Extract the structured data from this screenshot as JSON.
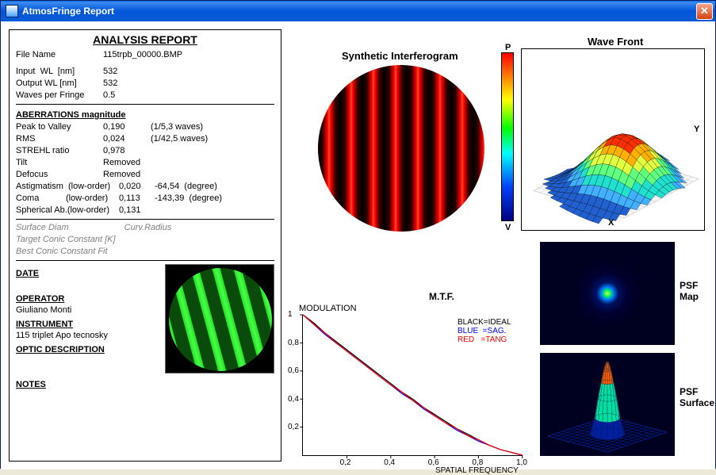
{
  "window": {
    "title": "AtmosFringe  Report"
  },
  "report": {
    "heading": "ANALYSIS  REPORT",
    "file_label": "File Name",
    "file_value": "115trpb_00000.BMP",
    "input_wl_label": "Input  WL  [nm]",
    "input_wl": "532",
    "output_wl_label": "Output WL [nm]",
    "output_wl": "532",
    "wpf_label": "Waves per Fringe",
    "wpf": "0.5",
    "abmag_heading": "ABERRATIONS magnitude",
    "ptv_label": "Peak to Valley",
    "ptv_val": "0,190",
    "ptv_note": "(1/5,3 waves)",
    "rms_label": "RMS",
    "rms_val": "0,024",
    "rms_note": "(1/42,5 waves)",
    "strehl_label": "STREHL ratio",
    "strehl_val": "0,978",
    "tilt_label": "Tilt",
    "tilt_val": "Removed",
    "defocus_label": "Defocus",
    "defocus_val": "Removed",
    "astig_label": "Astigmatism  (low-order)",
    "astig_val": "0,020",
    "astig_deg": "-64,54  (degree)",
    "coma_label": "Coma           (low-order)",
    "coma_val": "0,113",
    "coma_deg": "-143,39  (degree)",
    "sph_label": "Spherical Ab.(low-order)",
    "sph_val": "0,131",
    "surf_diam": "Surface Diam",
    "curv_radius": "Curv.Radius",
    "target_conic": "Target Conic Constant [K]",
    "best_conic": "Best Conic Constant Fit",
    "date_heading": "DATE",
    "operator_heading": "OPERATOR",
    "operator": "Giuliano Monti",
    "instrument_heading": "INSTRUMENT",
    "instrument": "115 triplet Apo tecnosky",
    "optic_heading": "OPTIC DESCRIPTION",
    "notes_heading": "NOTES"
  },
  "interferogram": {
    "title": "Synthetic Interferogram",
    "stripe_dark": "#000000",
    "stripe_mid": "#aa0000",
    "stripe_bright": "#ff3a1a"
  },
  "colorbar": {
    "top_label": "P",
    "bottom_label": "V",
    "stops": [
      "#ff0000",
      "#ff8000",
      "#ffff00",
      "#00ff00",
      "#00ffff",
      "#0040ff",
      "#000080"
    ]
  },
  "wavefront": {
    "title": "Wave Front",
    "x_label": "X",
    "y_label": "Y",
    "grid_color": "#c0c0c0",
    "mesh_color": "#000000",
    "surface_colors": [
      "#ff3000",
      "#ffb000",
      "#e0ff40",
      "#60ff80",
      "#20e0d0",
      "#40b0ff",
      "#2060d0"
    ]
  },
  "psfmap": {
    "label1": "PSF",
    "label2": "Map",
    "bg": "#000020",
    "core": "#ffff80",
    "ring1": "#00ff40",
    "ring2": "#0080ff"
  },
  "psfsurf": {
    "label1": "PSF",
    "label2": "Surface",
    "bg": "#000020",
    "base": "#0020a0",
    "mid": "#00e0a0",
    "peak": "#ff6000"
  },
  "mtf": {
    "title": "M.T.F.",
    "ylabel": "MODULATION",
    "xlabel": "SPATIAL FREQUENCY",
    "ylim": [
      0,
      1
    ],
    "yticks": [
      "0,2",
      "0,4",
      "0,6",
      "0,8",
      "1"
    ],
    "xlim": [
      0,
      1
    ],
    "xticks": [
      "0,2",
      "0,4",
      "0,6",
      "0,8",
      "1,0"
    ],
    "legend_black": "BLACK=IDEAL",
    "legend_blue": "BLUE  =SAG.",
    "legend_red": "RED   =TANG",
    "ideal_color": "#000000",
    "sag_color": "#0000ff",
    "tang_color": "#ff0000",
    "curve_x": [
      0.0,
      0.05,
      0.1,
      0.15,
      0.2,
      0.25,
      0.3,
      0.35,
      0.4,
      0.45,
      0.5,
      0.55,
      0.6,
      0.65,
      0.7,
      0.75,
      0.8,
      0.85,
      0.9,
      0.95,
      1.0
    ],
    "curve_ideal": [
      1.0,
      0.94,
      0.87,
      0.81,
      0.75,
      0.69,
      0.63,
      0.57,
      0.51,
      0.45,
      0.4,
      0.34,
      0.29,
      0.24,
      0.19,
      0.15,
      0.11,
      0.07,
      0.04,
      0.02,
      0.0
    ],
    "curve_sag": [
      1.0,
      0.93,
      0.86,
      0.8,
      0.74,
      0.68,
      0.62,
      0.56,
      0.5,
      0.44,
      0.39,
      0.33,
      0.28,
      0.23,
      0.18,
      0.14,
      0.1,
      0.07,
      0.04,
      0.02,
      0.0
    ],
    "curve_tang": [
      1.0,
      0.93,
      0.87,
      0.8,
      0.74,
      0.68,
      0.62,
      0.56,
      0.5,
      0.45,
      0.39,
      0.34,
      0.28,
      0.23,
      0.19,
      0.14,
      0.11,
      0.07,
      0.04,
      0.02,
      0.0
    ]
  }
}
